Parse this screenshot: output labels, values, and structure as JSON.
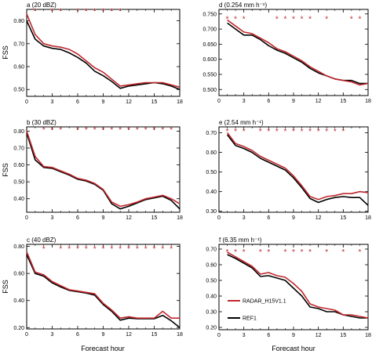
{
  "figure": {
    "ylabel": "FSS",
    "xlabel": "Forecast hour",
    "colors": {
      "radar": "#c0282d",
      "ref": "#000000",
      "marker": "#c0282d"
    },
    "marker_glyph": "*",
    "legend": [
      {
        "name": "RADAR_H15V1.1",
        "color": "#c0282d"
      },
      {
        "name": "REF1",
        "color": "#000000"
      }
    ]
  },
  "chart_data": [
    {
      "id": "a",
      "type": "line",
      "title": "a (20 dBZ)",
      "xlim": [
        0,
        18
      ],
      "xticks": [
        0,
        3,
        6,
        9,
        12,
        15,
        18
      ],
      "ylim": [
        0.47,
        0.85
      ],
      "yticks": [
        0.5,
        0.6,
        0.7,
        0.8
      ],
      "ytick_labels": [
        "0.50",
        "0.60",
        "0.70",
        "0.80"
      ],
      "x": [
        0,
        1,
        2,
        3,
        4,
        5,
        6,
        7,
        8,
        9,
        10,
        11,
        12,
        13,
        14,
        15,
        16,
        17,
        18
      ],
      "series": [
        {
          "name": "RADAR_H15V1.1",
          "values": [
            0.83,
            0.74,
            0.7,
            0.69,
            0.685,
            0.675,
            0.655,
            0.625,
            0.595,
            0.575,
            0.545,
            0.515,
            0.52,
            0.525,
            0.53,
            0.53,
            0.53,
            0.52,
            0.51
          ]
        },
        {
          "name": "REF1",
          "values": [
            0.8,
            0.72,
            0.69,
            0.68,
            0.675,
            0.66,
            0.64,
            0.615,
            0.58,
            0.56,
            0.535,
            0.505,
            0.515,
            0.52,
            0.525,
            0.53,
            0.525,
            0.515,
            0.5
          ]
        }
      ],
      "markers_x": [
        1,
        3,
        4,
        6,
        7,
        8,
        9,
        10,
        11
      ],
      "markers_y": 0.845
    },
    {
      "id": "d",
      "type": "line",
      "title": "d (0.254 mm h⁻¹)",
      "xlim": [
        0,
        18
      ],
      "xticks": [
        0,
        3,
        6,
        9,
        12,
        15,
        18
      ],
      "ylim": [
        0.48,
        0.765
      ],
      "yticks": [
        0.5,
        0.55,
        0.6,
        0.65,
        0.7,
        0.75
      ],
      "ytick_labels": [
        "0.500",
        "0.550",
        "0.600",
        "0.650",
        "0.700",
        "0.750"
      ],
      "x": [
        1,
        2,
        3,
        4,
        5,
        6,
        7,
        8,
        9,
        10,
        11,
        12,
        13,
        14,
        15,
        16,
        17,
        18
      ],
      "series": [
        {
          "name": "RADAR_H15V1.1",
          "values": [
            0.73,
            0.71,
            0.69,
            0.685,
            0.67,
            0.655,
            0.635,
            0.625,
            0.61,
            0.595,
            0.575,
            0.56,
            0.545,
            0.535,
            0.53,
            0.525,
            0.515,
            0.52
          ]
        },
        {
          "name": "REF1",
          "values": [
            0.72,
            0.7,
            0.68,
            0.68,
            0.665,
            0.645,
            0.63,
            0.62,
            0.605,
            0.59,
            0.57,
            0.555,
            0.545,
            0.535,
            0.53,
            0.53,
            0.52,
            0.52
          ]
        }
      ],
      "markers_x": [
        1,
        2,
        3,
        7,
        8,
        9,
        10,
        11,
        13,
        16,
        17
      ],
      "markers_y": 0.735
    },
    {
      "id": "b",
      "type": "line",
      "title": "b (30 dBZ)",
      "xlim": [
        0,
        18
      ],
      "xticks": [
        0,
        3,
        6,
        9,
        12,
        15,
        18
      ],
      "ylim": [
        0.32,
        0.825
      ],
      "yticks": [
        0.4,
        0.5,
        0.6,
        0.7,
        0.8
      ],
      "ytick_labels": [
        "0.40",
        "0.50",
        "0.60",
        "0.70",
        "0.80"
      ],
      "x": [
        0,
        1,
        2,
        3,
        4,
        5,
        6,
        7,
        8,
        9,
        10,
        11,
        12,
        13,
        14,
        15,
        16,
        17,
        18
      ],
      "series": [
        {
          "name": "RADAR_H15V1.1",
          "values": [
            0.8,
            0.65,
            0.59,
            0.585,
            0.565,
            0.545,
            0.52,
            0.51,
            0.49,
            0.455,
            0.38,
            0.355,
            0.365,
            0.38,
            0.4,
            0.41,
            0.42,
            0.4,
            0.37
          ]
        },
        {
          "name": "REF1",
          "values": [
            0.79,
            0.63,
            0.585,
            0.58,
            0.56,
            0.54,
            0.515,
            0.505,
            0.485,
            0.45,
            0.37,
            0.34,
            0.355,
            0.375,
            0.395,
            0.405,
            0.415,
            0.39,
            0.34
          ]
        }
      ],
      "markers_x": [
        2,
        3,
        4,
        6,
        7,
        8,
        9,
        10,
        11,
        12,
        13,
        14,
        15,
        16,
        17
      ],
      "markers_y": 0.81
    },
    {
      "id": "e",
      "type": "line",
      "title": "e (2.54 mm h⁻¹)",
      "xlim": [
        0,
        18
      ],
      "xticks": [
        0,
        3,
        6,
        9,
        12,
        15,
        18
      ],
      "ylim": [
        0.295,
        0.73
      ],
      "yticks": [
        0.3,
        0.4,
        0.5,
        0.6,
        0.7
      ],
      "ytick_labels": [
        "0.30",
        "0.40",
        "0.50",
        "0.60",
        "0.70"
      ],
      "x": [
        1,
        2,
        3,
        4,
        5,
        6,
        7,
        8,
        9,
        10,
        11,
        12,
        13,
        14,
        15,
        16,
        17,
        18
      ],
      "series": [
        {
          "name": "RADAR_H15V1.1",
          "values": [
            0.7,
            0.645,
            0.63,
            0.61,
            0.58,
            0.56,
            0.54,
            0.52,
            0.48,
            0.43,
            0.375,
            0.36,
            0.375,
            0.38,
            0.39,
            0.39,
            0.4,
            0.395
          ]
        },
        {
          "name": "REF1",
          "values": [
            0.69,
            0.635,
            0.62,
            0.6,
            0.57,
            0.55,
            0.53,
            0.51,
            0.47,
            0.42,
            0.365,
            0.345,
            0.36,
            0.37,
            0.375,
            0.37,
            0.37,
            0.33
          ]
        }
      ],
      "markers_x": [
        1,
        2,
        3,
        5,
        6,
        7,
        8,
        9,
        10,
        11,
        12,
        13,
        14,
        15
      ],
      "markers_y": 0.71
    },
    {
      "id": "c",
      "type": "line",
      "title": "c (40 dBZ)",
      "xlim": [
        0,
        18
      ],
      "xticks": [
        0,
        3,
        6,
        9,
        12,
        15,
        18
      ],
      "ylim": [
        0.19,
        0.815
      ],
      "yticks": [
        0.2,
        0.4,
        0.6,
        0.8
      ],
      "ytick_labels": [
        "0.20",
        "0.40",
        "0.60",
        "0.80"
      ],
      "x": [
        0,
        1,
        2,
        3,
        4,
        5,
        6,
        7,
        8,
        9,
        10,
        11,
        12,
        13,
        14,
        15,
        16,
        17,
        18
      ],
      "series": [
        {
          "name": "RADAR_H15V1.1",
          "values": [
            0.76,
            0.61,
            0.59,
            0.54,
            0.51,
            0.48,
            0.47,
            0.46,
            0.45,
            0.38,
            0.33,
            0.27,
            0.28,
            0.27,
            0.27,
            0.27,
            0.32,
            0.27,
            0.27
          ]
        },
        {
          "name": "REF1",
          "values": [
            0.74,
            0.6,
            0.58,
            0.53,
            0.5,
            0.475,
            0.465,
            0.455,
            0.44,
            0.37,
            0.32,
            0.255,
            0.27,
            0.265,
            0.265,
            0.265,
            0.29,
            0.25,
            0.2
          ]
        }
      ],
      "markers_x": [
        2,
        4,
        5,
        6,
        7,
        8,
        9,
        10,
        11,
        12,
        13,
        14,
        15,
        16,
        17
      ],
      "markers_y": 0.785
    },
    {
      "id": "f",
      "type": "line",
      "title": "f (6.35 mm h⁻¹)",
      "xlim": [
        0,
        18
      ],
      "xticks": [
        0,
        3,
        6,
        9,
        12,
        15,
        18
      ],
      "ylim": [
        0.185,
        0.73
      ],
      "yticks": [
        0.2,
        0.3,
        0.4,
        0.5,
        0.6,
        0.7
      ],
      "ytick_labels": [
        "0.20",
        "0.30",
        "0.40",
        "0.50",
        "0.60",
        "0.70"
      ],
      "x": [
        1,
        2,
        3,
        4,
        5,
        6,
        7,
        8,
        9,
        10,
        11,
        12,
        13,
        14,
        15,
        16,
        17,
        18
      ],
      "series": [
        {
          "name": "RADAR_H15V1.1",
          "values": [
            0.68,
            0.65,
            0.62,
            0.59,
            0.54,
            0.55,
            0.53,
            0.52,
            0.48,
            0.43,
            0.35,
            0.33,
            0.32,
            0.31,
            0.28,
            0.28,
            0.27,
            0.26
          ]
        },
        {
          "name": "REF1",
          "values": [
            0.665,
            0.64,
            0.61,
            0.58,
            0.525,
            0.53,
            0.515,
            0.5,
            0.45,
            0.4,
            0.33,
            0.32,
            0.3,
            0.3,
            0.28,
            0.27,
            0.26,
            0.26
          ]
        }
      ],
      "markers_x": [
        1,
        2,
        3,
        5,
        6,
        8,
        9,
        10,
        11,
        13,
        15,
        17
      ],
      "markers_y": 0.685
    }
  ]
}
